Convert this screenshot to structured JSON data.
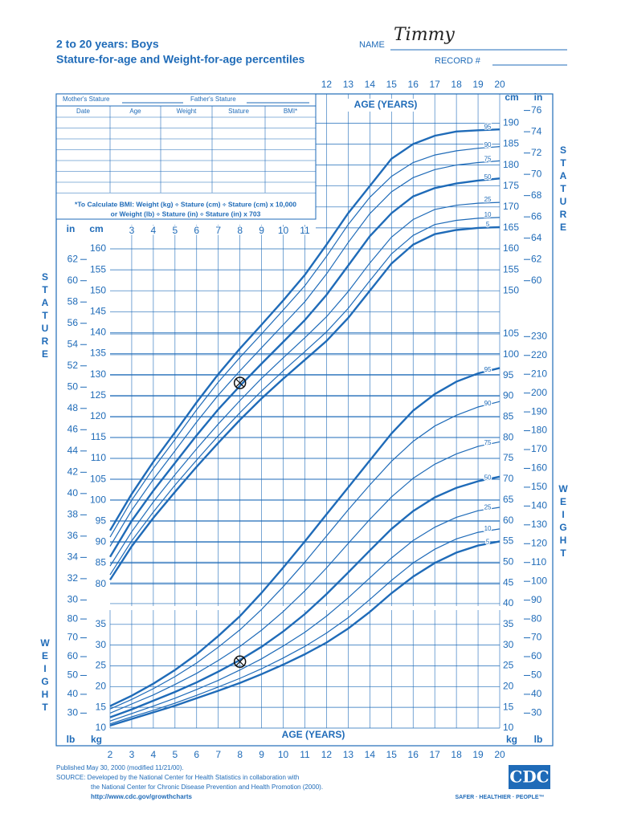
{
  "header": {
    "title": "2 to 20 years: Boys",
    "subtitle": "Stature-for-age and Weight-for-age percentiles",
    "name_label": "NAME",
    "name_value": "Timmy",
    "record_label": "RECORD #"
  },
  "form": {
    "mother": "Mother's Stature",
    "father": "Father's Stature",
    "columns": [
      "Date",
      "Age",
      "Weight",
      "Stature",
      "BMI*"
    ],
    "bmi_note": [
      "*To Calculate BMI: Weight (kg) ÷ Stature (cm) ÷ Stature (cm) x 10,000",
      "or Weight (lb) ÷ Stature (in) ÷ Stature (in) x 703"
    ]
  },
  "footer": {
    "published": "Published May 30, 2000 (modified 11/21/00).",
    "source": "SOURCE: Developed by the National Center for Health Statistics in collaboration with",
    "source2": "the National Center for Chronic Disease Prevention and Health Promotion (2000).",
    "url": "http://www.cdc.gov/growthcharts",
    "logo": "CDC",
    "tagline": "SAFER · HEALTHIER · PEOPLE™"
  },
  "chart_data": [
    {
      "type": "line",
      "title": "STATURE",
      "x_label": "AGE (YEARS)",
      "y_label": "cm",
      "y2_label": "in",
      "x": [
        2,
        3,
        4,
        5,
        6,
        7,
        8,
        9,
        10,
        11,
        12,
        13,
        14,
        15,
        16,
        17,
        18,
        19,
        20
      ],
      "xlim": [
        2,
        20
      ],
      "xticks": [
        3,
        4,
        5,
        6,
        7,
        8,
        9,
        10,
        11,
        12,
        13,
        14,
        15,
        16,
        17,
        18,
        19,
        20
      ],
      "ylim": [
        80,
        190
      ],
      "yticks": [
        80,
        85,
        90,
        95,
        100,
        105,
        110,
        115,
        120,
        125,
        130,
        135,
        140,
        145,
        150,
        155,
        160,
        165,
        170,
        175,
        180,
        185,
        190
      ],
      "y2lim": [
        30,
        76
      ],
      "y2ticks": [
        30,
        32,
        34,
        36,
        38,
        40,
        42,
        44,
        46,
        48,
        50,
        52,
        54,
        56,
        58,
        60,
        62,
        64,
        66,
        68,
        70,
        72,
        74,
        76
      ],
      "grid": true,
      "series": [
        {
          "name": "5",
          "color": "#1f6bb8",
          "values": [
            81.0,
            89.0,
            95.8,
            102.0,
            108.0,
            113.7,
            119.2,
            124.3,
            129.0,
            133.5,
            138.0,
            143.5,
            150.0,
            156.5,
            161.0,
            163.5,
            164.5,
            165.0,
            165.2
          ]
        },
        {
          "name": "10",
          "color": "#1f6bb8",
          "values": [
            82.2,
            90.3,
            97.2,
            103.6,
            109.6,
            115.4,
            120.9,
            126.1,
            130.9,
            135.5,
            140.2,
            145.8,
            152.4,
            158.8,
            163.2,
            165.8,
            166.8,
            167.3,
            167.5
          ]
        },
        {
          "name": "25",
          "color": "#1f6bb8",
          "values": [
            84.3,
            92.5,
            99.6,
            106.1,
            112.3,
            118.2,
            123.8,
            129.1,
            134.0,
            138.8,
            143.8,
            149.8,
            156.6,
            162.8,
            167.0,
            169.4,
            170.4,
            170.9,
            171.1
          ]
        },
        {
          "name": "50",
          "color": "#1f6bb8",
          "values": [
            86.5,
            95.1,
            102.3,
            108.9,
            115.5,
            121.7,
            127.3,
            132.6,
            137.8,
            143.0,
            149.0,
            156.0,
            163.0,
            168.5,
            172.5,
            174.5,
            175.6,
            176.3,
            176.8
          ]
        },
        {
          "name": "75",
          "color": "#1f6bb8",
          "values": [
            89.0,
            97.6,
            105.0,
            111.8,
            118.7,
            125.1,
            130.9,
            136.4,
            141.9,
            147.4,
            154.0,
            161.5,
            168.4,
            173.6,
            177.0,
            178.9,
            180.0,
            180.6,
            181.0
          ]
        },
        {
          "name": "90",
          "color": "#1f6bb8",
          "values": [
            91.2,
            100.0,
            107.6,
            114.5,
            121.6,
            128.2,
            134.1,
            139.7,
            145.4,
            151.2,
            158.2,
            165.8,
            172.3,
            177.3,
            180.6,
            182.4,
            183.4,
            184.0,
            184.4
          ]
        },
        {
          "name": "95",
          "color": "#1f6bb8",
          "values": [
            92.8,
            101.5,
            109.2,
            116.2,
            123.4,
            130.1,
            136.2,
            141.9,
            147.7,
            153.8,
            161.0,
            168.5,
            175.0,
            181.5,
            185.0,
            187.0,
            188.0,
            188.3,
            188.5
          ]
        }
      ],
      "point": {
        "x": 8,
        "y": 128
      }
    },
    {
      "type": "line",
      "title": "WEIGHT",
      "x_label": "AGE (YEARS)",
      "y_label": "kg",
      "y2_label": "lb",
      "x": [
        2,
        3,
        4,
        5,
        6,
        7,
        8,
        9,
        10,
        11,
        12,
        13,
        14,
        15,
        16,
        17,
        18,
        19,
        20
      ],
      "xlim": [
        2,
        20
      ],
      "xticks": [
        2,
        3,
        4,
        5,
        6,
        7,
        8,
        9,
        10,
        11,
        12,
        13,
        14,
        15,
        16,
        17,
        18,
        19,
        20
      ],
      "ylim": [
        10,
        105
      ],
      "yticks": [
        10,
        15,
        20,
        25,
        30,
        35,
        40,
        45,
        50,
        55,
        60,
        65,
        70,
        75,
        80,
        85,
        90,
        95,
        100,
        105
      ],
      "y2lim": [
        20,
        230
      ],
      "y2ticks": [
        30,
        40,
        50,
        60,
        70,
        80,
        90,
        100,
        110,
        120,
        130,
        140,
        150,
        160,
        170,
        180,
        190,
        200,
        210,
        220,
        230
      ],
      "grid": true,
      "series": [
        {
          "name": "5",
          "color": "#1f6bb8",
          "values": [
            10.6,
            12.2,
            13.8,
            15.4,
            17.2,
            19.0,
            20.9,
            23.0,
            25.3,
            27.8,
            30.6,
            34.0,
            38.0,
            42.5,
            46.5,
            49.8,
            52.3,
            54.0,
            55.0
          ]
        },
        {
          "name": "10",
          "color": "#1f6bb8",
          "values": [
            11.0,
            12.7,
            14.3,
            16.0,
            17.9,
            19.9,
            22.0,
            24.3,
            26.9,
            29.7,
            32.9,
            36.6,
            41.0,
            45.6,
            49.8,
            53.1,
            55.6,
            57.2,
            58.0
          ]
        },
        {
          "name": "25",
          "color": "#1f6bb8",
          "values": [
            11.7,
            13.5,
            15.3,
            17.2,
            19.3,
            21.5,
            24.0,
            26.7,
            29.8,
            33.1,
            37.0,
            41.4,
            46.2,
            51.0,
            55.2,
            58.4,
            60.8,
            62.4,
            63.2
          ]
        },
        {
          "name": "50",
          "color": "#1f6bb8",
          "values": [
            12.6,
            14.5,
            16.6,
            18.7,
            21.0,
            23.6,
            26.4,
            29.6,
            33.3,
            37.5,
            42.3,
            47.5,
            52.8,
            58.0,
            62.3,
            65.6,
            67.9,
            69.5,
            70.6
          ]
        },
        {
          "name": "75",
          "color": "#1f6bb8",
          "values": [
            13.6,
            15.8,
            18.0,
            20.5,
            23.2,
            26.3,
            29.7,
            33.6,
            38.1,
            43.1,
            48.6,
            54.5,
            60.3,
            65.7,
            70.2,
            73.6,
            76.1,
            77.9,
            79.0
          ]
        },
        {
          "name": "90",
          "color": "#1f6bb8",
          "values": [
            14.6,
            16.9,
            19.5,
            22.4,
            25.7,
            29.5,
            33.7,
            38.6,
            44.1,
            50.0,
            56.3,
            62.6,
            68.6,
            74.3,
            79.1,
            82.8,
            85.4,
            87.4,
            88.7
          ]
        },
        {
          "name": "95",
          "color": "#1f6bb8",
          "values": [
            15.3,
            17.8,
            20.7,
            24.0,
            27.8,
            32.2,
            37.0,
            42.6,
            48.7,
            55.0,
            61.5,
            68.0,
            74.5,
            81.0,
            86.5,
            90.5,
            93.5,
            95.5,
            96.8
          ]
        }
      ],
      "point": {
        "x": 8,
        "y": 26
      }
    }
  ]
}
